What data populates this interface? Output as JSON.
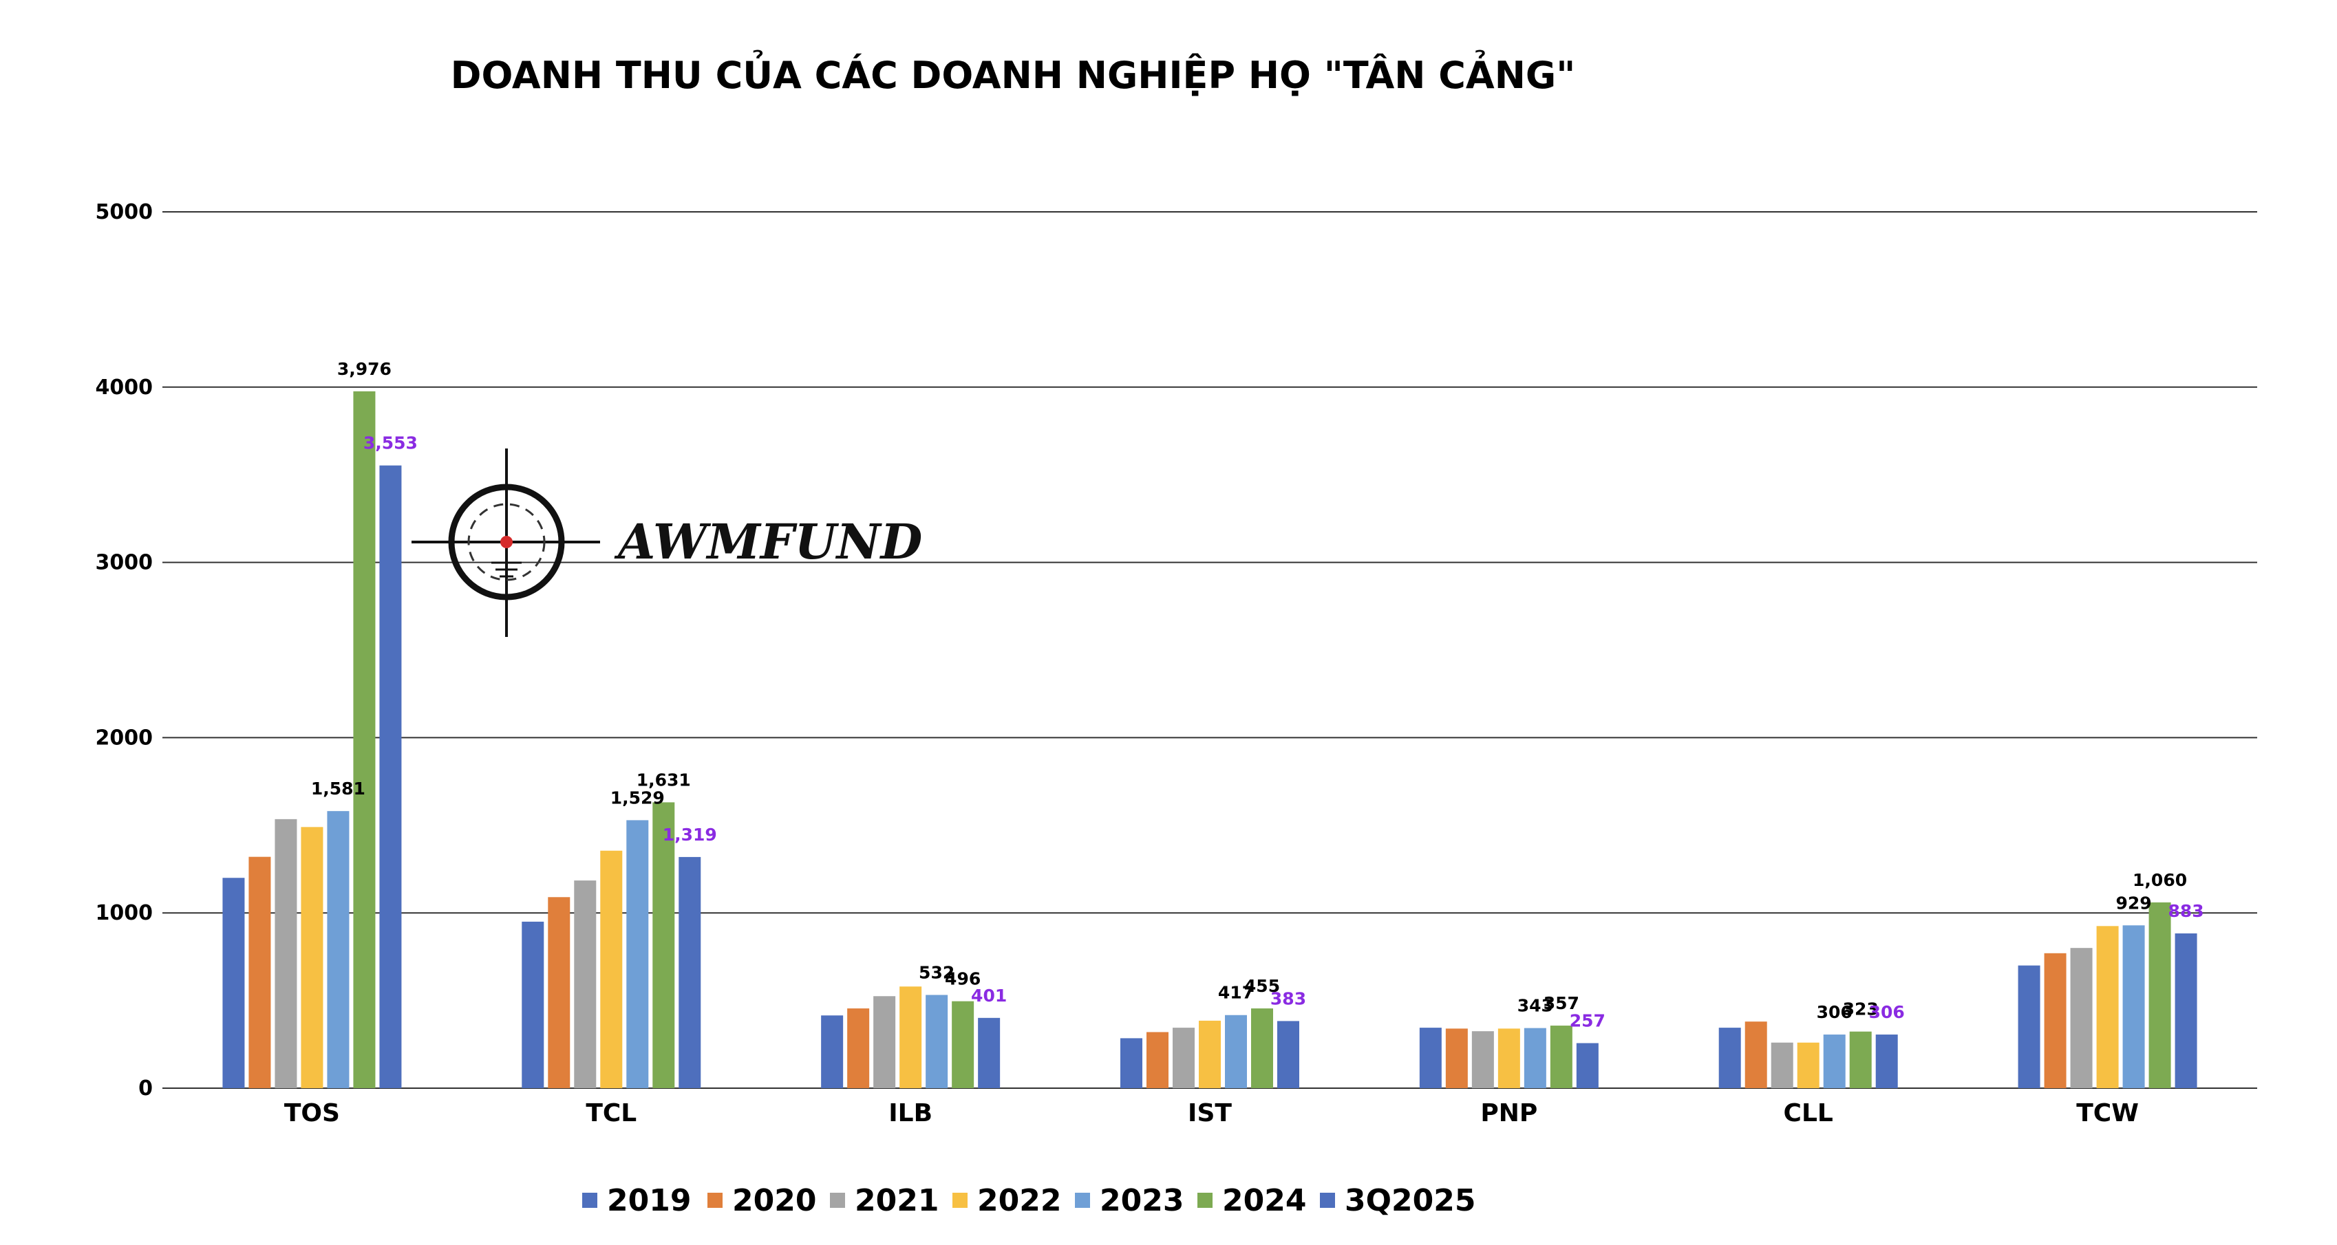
{
  "chart_data": {
    "type": "bar",
    "title": "DOANH THU CỦA CÁC DOANH NGHIỆP HỌ \"TÂN CẢNG\"",
    "xlabel": "",
    "ylabel": "",
    "ylim": [
      0,
      5000
    ],
    "yticks": [
      0,
      1000,
      2000,
      3000,
      4000,
      5000
    ],
    "ytick_labels": [
      "0",
      "1000",
      "2000",
      "3000",
      "4000",
      "5000"
    ],
    "grid": true,
    "legend_position": "bottom",
    "categories": [
      "TOS",
      "TCL",
      "ILB",
      "IST",
      "PNP",
      "CLL",
      "TCW"
    ],
    "series": [
      {
        "name": "2019",
        "color": "#4e6fbd",
        "values": [
          1200,
          950,
          415,
          285,
          345,
          345,
          700
        ]
      },
      {
        "name": "2020",
        "color": "#e07f3b",
        "values": [
          1320,
          1090,
          455,
          320,
          340,
          380,
          770
        ]
      },
      {
        "name": "2021",
        "color": "#a5a5a5",
        "values": [
          1535,
          1185,
          525,
          345,
          325,
          260,
          800
        ]
      },
      {
        "name": "2022",
        "color": "#f7c043",
        "values": [
          1490,
          1355,
          580,
          385,
          340,
          260,
          925
        ]
      },
      {
        "name": "2023",
        "color": "#6f9fd6",
        "values": [
          1581,
          1529,
          532,
          417,
          343,
          306,
          929
        ]
      },
      {
        "name": "2024",
        "color": "#7daa52",
        "values": [
          3976,
          1631,
          496,
          455,
          357,
          323,
          1060
        ]
      },
      {
        "name": "3Q2025",
        "color": "#4e6fbd",
        "values": [
          3553,
          1319,
          401,
          383,
          257,
          306,
          883
        ]
      }
    ],
    "data_labels": [
      {
        "text": "1,581",
        "category": 0,
        "series": 4,
        "highlight": false
      },
      {
        "text": "3,976",
        "category": 0,
        "series": 5,
        "highlight": false
      },
      {
        "text": "3,553",
        "category": 0,
        "series": 6,
        "highlight": true
      },
      {
        "text": "1,529",
        "category": 1,
        "series": 4,
        "highlight": false
      },
      {
        "text": "1,631",
        "category": 1,
        "series": 5,
        "highlight": false
      },
      {
        "text": "1,319",
        "category": 1,
        "series": 6,
        "highlight": true
      },
      {
        "text": "532",
        "category": 2,
        "series": 4,
        "highlight": false
      },
      {
        "text": "496",
        "category": 2,
        "series": 5,
        "highlight": false
      },
      {
        "text": "401",
        "category": 2,
        "series": 6,
        "highlight": true
      },
      {
        "text": "417",
        "category": 3,
        "series": 4,
        "highlight": false
      },
      {
        "text": "455",
        "category": 3,
        "series": 5,
        "highlight": false
      },
      {
        "text": "383",
        "category": 3,
        "series": 6,
        "highlight": true
      },
      {
        "text": "343",
        "category": 4,
        "series": 4,
        "highlight": false
      },
      {
        "text": "357",
        "category": 4,
        "series": 5,
        "highlight": false
      },
      {
        "text": "257",
        "category": 4,
        "series": 6,
        "highlight": true
      },
      {
        "text": "306",
        "category": 5,
        "series": 4,
        "highlight": false
      },
      {
        "text": "323",
        "category": 5,
        "series": 5,
        "highlight": false
      },
      {
        "text": "306",
        "category": 5,
        "series": 6,
        "highlight": true
      },
      {
        "text": "929",
        "category": 6,
        "series": 4,
        "highlight": false
      },
      {
        "text": "1,060",
        "category": 6,
        "series": 5,
        "highlight": false
      },
      {
        "text": "883",
        "category": 6,
        "series": 6,
        "highlight": true
      }
    ]
  },
  "watermark": {
    "text": "AWMFUND",
    "icon": "crosshair-logo"
  },
  "colors": {
    "highlight_label": "#8a2be2",
    "crosshair_dot": "#d62b2b"
  }
}
